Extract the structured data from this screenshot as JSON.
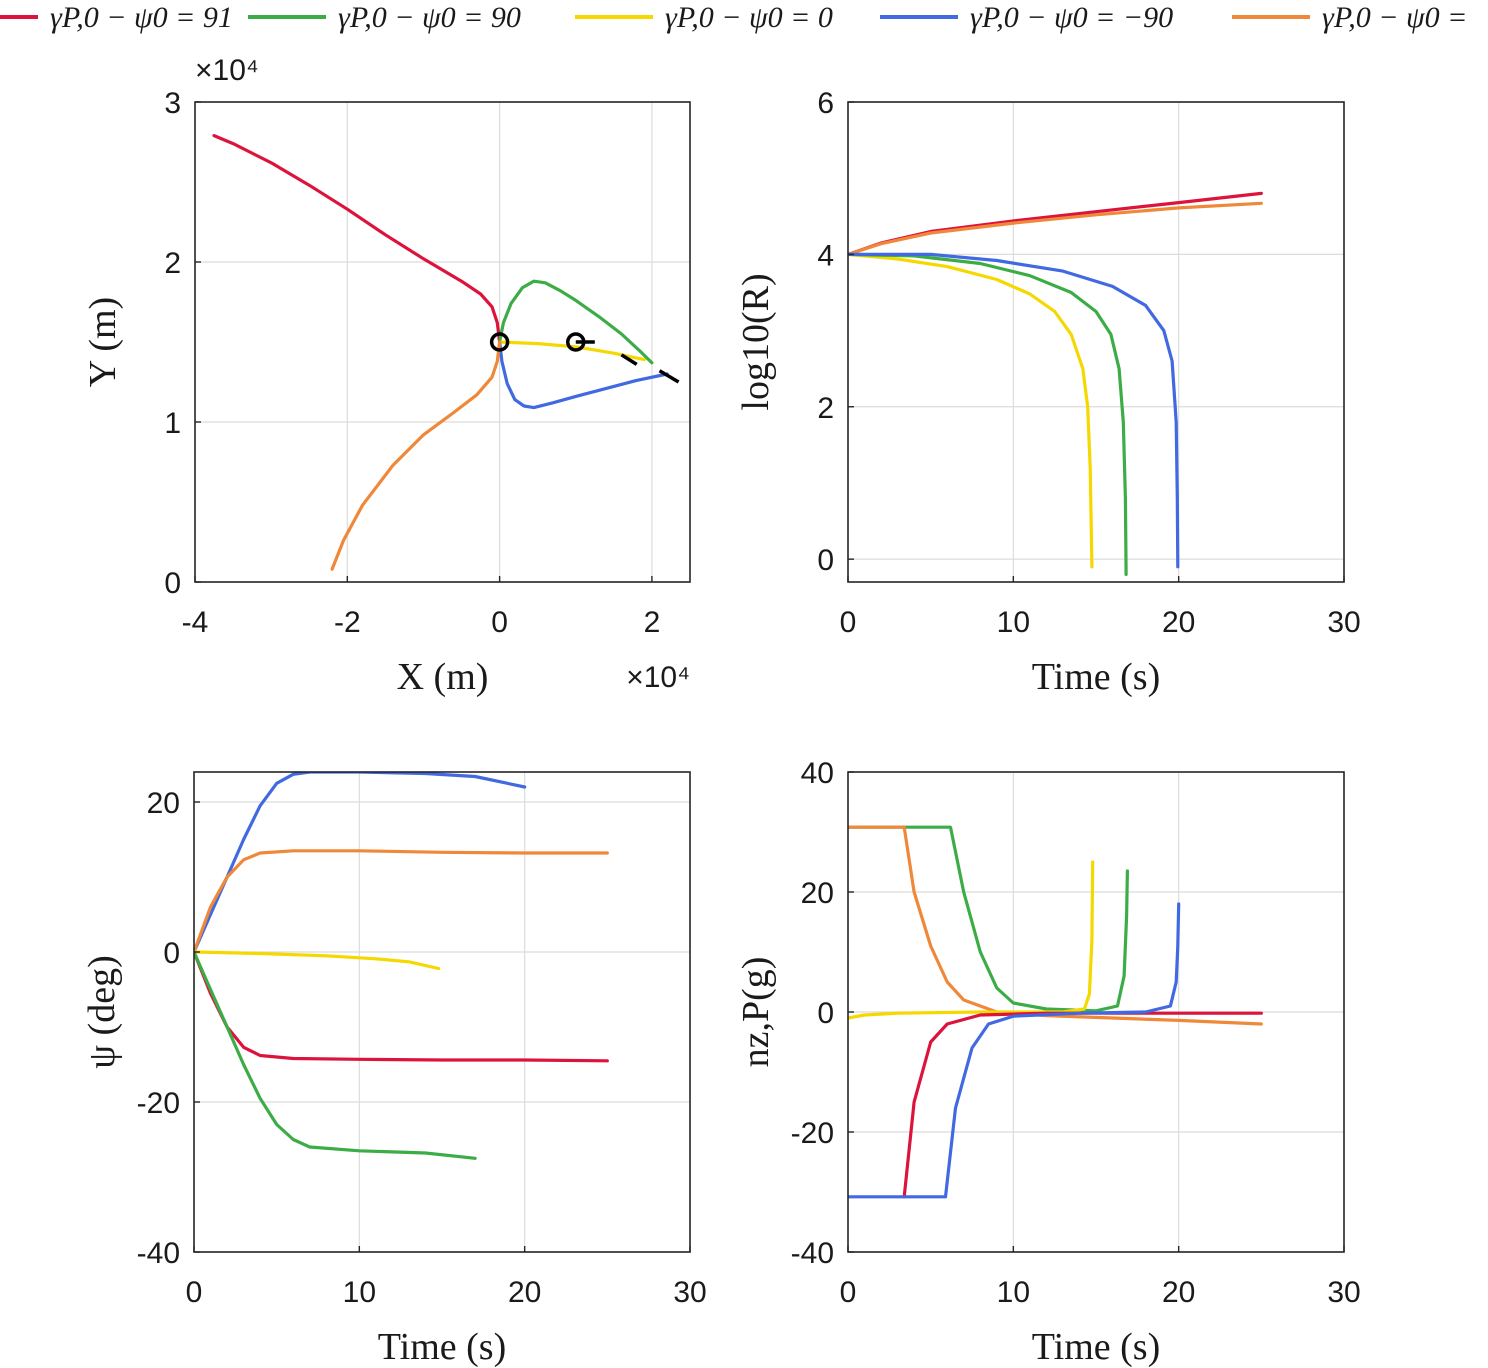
{
  "colors": {
    "red": "#dc143c",
    "green": "#3cac46",
    "yellow": "#f5d800",
    "blue": "#4169e1",
    "orange": "#f0883a",
    "marker": "#000000"
  },
  "legend": [
    {
      "label": "γP,0 − ψ0 = 91",
      "color": "red"
    },
    {
      "label": "γP,0 − ψ0 = 90",
      "color": "green"
    },
    {
      "label": "γP,0 − ψ0 = 0",
      "color": "yellow"
    },
    {
      "label": "γP,0 − ψ0 = −90",
      "color": "blue"
    },
    {
      "label": "γP,0 − ψ0 =",
      "color": "orange"
    }
  ],
  "chart_data": [
    {
      "id": "trajectory",
      "type": "line",
      "xlabel": "X (m)",
      "ylabel": "Y (m)",
      "xlim": [
        -4,
        2.5
      ],
      "ylim": [
        0,
        3
      ],
      "xticks": [
        -4,
        -2,
        0,
        2
      ],
      "yticks": [
        0,
        1,
        2,
        3
      ],
      "xtick_labels": [
        "-4",
        "-2",
        "0",
        "2"
      ],
      "ytick_labels": [
        "0",
        "1",
        "2",
        "3"
      ],
      "x_exponent": "×10⁴",
      "y_exponent": "×10⁴",
      "series": [
        {
          "name": "γP,0 − ψ0 = 91",
          "color": "red",
          "points": [
            [
              0,
              1.5
            ],
            [
              -0.03,
              1.62
            ],
            [
              -0.1,
              1.72
            ],
            [
              -0.25,
              1.8
            ],
            [
              -0.5,
              1.88
            ],
            [
              -1.0,
              2.02
            ],
            [
              -1.5,
              2.17
            ],
            [
              -2.0,
              2.33
            ],
            [
              -2.5,
              2.48
            ],
            [
              -3.0,
              2.62
            ],
            [
              -3.5,
              2.74
            ],
            [
              -3.75,
              2.79
            ]
          ]
        },
        {
          "name": "γP,0 − ψ0 = 90",
          "color": "green",
          "points": [
            [
              0,
              1.5
            ],
            [
              0.05,
              1.62
            ],
            [
              0.15,
              1.74
            ],
            [
              0.3,
              1.84
            ],
            [
              0.45,
              1.88
            ],
            [
              0.6,
              1.87
            ],
            [
              0.8,
              1.82
            ],
            [
              1.0,
              1.76
            ],
            [
              1.3,
              1.66
            ],
            [
              1.6,
              1.55
            ],
            [
              1.85,
              1.44
            ],
            [
              2.0,
              1.37
            ]
          ]
        },
        {
          "name": "γP,0 − ψ0 = 0",
          "color": "yellow",
          "points": [
            [
              0,
              1.5
            ],
            [
              0.5,
              1.49
            ],
            [
              1.0,
              1.47
            ],
            [
              1.5,
              1.43
            ],
            [
              1.9,
              1.39
            ]
          ]
        },
        {
          "name": "γP,0 − ψ0 = −90",
          "color": "blue",
          "points": [
            [
              0,
              1.5
            ],
            [
              0.03,
              1.38
            ],
            [
              0.1,
              1.24
            ],
            [
              0.2,
              1.14
            ],
            [
              0.32,
              1.1
            ],
            [
              0.45,
              1.09
            ],
            [
              0.7,
              1.12
            ],
            [
              1.0,
              1.16
            ],
            [
              1.4,
              1.21
            ],
            [
              1.8,
              1.26
            ],
            [
              2.2,
              1.3
            ]
          ]
        },
        {
          "name": "γP,0 − ψ0 =",
          "color": "orange",
          "points": [
            [
              0,
              1.5
            ],
            [
              -0.03,
              1.38
            ],
            [
              -0.1,
              1.28
            ],
            [
              -0.3,
              1.17
            ],
            [
              -0.6,
              1.06
            ],
            [
              -1.0,
              0.92
            ],
            [
              -1.4,
              0.73
            ],
            [
              -1.8,
              0.48
            ],
            [
              -2.05,
              0.26
            ],
            [
              -2.2,
              0.08
            ]
          ]
        }
      ],
      "markers": [
        [
          0,
          1.5
        ],
        [
          1.0,
          1.5
        ]
      ],
      "marker_ticks": [
        [
          [
            1.0,
            1.5
          ],
          [
            1.25,
            1.5
          ]
        ],
        [
          [
            1.6,
            1.42
          ],
          [
            1.8,
            1.36
          ]
        ],
        [
          [
            2.1,
            1.32
          ],
          [
            2.35,
            1.25
          ]
        ]
      ]
    },
    {
      "id": "range",
      "type": "line",
      "xlabel": "Time (s)",
      "ylabel": "log10(R)",
      "xlim": [
        0,
        30
      ],
      "ylim": [
        -0.3,
        6
      ],
      "xticks": [
        0,
        10,
        20,
        30
      ],
      "yticks": [
        0,
        2,
        4,
        6
      ],
      "xtick_labels": [
        "0",
        "10",
        "20",
        "30"
      ],
      "ytick_labels": [
        "0",
        "2",
        "4",
        "6"
      ],
      "series": [
        {
          "name": "γP,0 − ψ0 = 91",
          "color": "red",
          "points": [
            [
              0,
              4
            ],
            [
              2,
              4.15
            ],
            [
              5,
              4.3
            ],
            [
              10,
              4.44
            ],
            [
              15,
              4.56
            ],
            [
              20,
              4.68
            ],
            [
              25,
              4.8
            ]
          ]
        },
        {
          "name": "γP,0 − ψ0 =",
          "color": "orange",
          "points": [
            [
              0,
              4
            ],
            [
              2,
              4.14
            ],
            [
              5,
              4.28
            ],
            [
              10,
              4.41
            ],
            [
              15,
              4.52
            ],
            [
              20,
              4.61
            ],
            [
              25,
              4.67
            ]
          ]
        },
        {
          "name": "γP,0 − ψ0 = 0",
          "color": "yellow",
          "points": [
            [
              0,
              4
            ],
            [
              3,
              3.94
            ],
            [
              6,
              3.84
            ],
            [
              9,
              3.67
            ],
            [
              11,
              3.48
            ],
            [
              12.5,
              3.25
            ],
            [
              13.5,
              2.95
            ],
            [
              14.2,
              2.5
            ],
            [
              14.5,
              2.0
            ],
            [
              14.65,
              1.2
            ],
            [
              14.72,
              0.3
            ],
            [
              14.75,
              -0.1
            ]
          ]
        },
        {
          "name": "γP,0 − ψ0 = 90",
          "color": "green",
          "points": [
            [
              0,
              4
            ],
            [
              4,
              3.98
            ],
            [
              8,
              3.88
            ],
            [
              11,
              3.72
            ],
            [
              13.5,
              3.5
            ],
            [
              15,
              3.25
            ],
            [
              15.9,
              2.95
            ],
            [
              16.4,
              2.5
            ],
            [
              16.65,
              1.8
            ],
            [
              16.78,
              0.8
            ],
            [
              16.82,
              -0.2
            ]
          ]
        },
        {
          "name": "γP,0 − ψ0 = −90",
          "color": "blue",
          "points": [
            [
              0,
              4
            ],
            [
              5,
              4.0
            ],
            [
              9,
              3.92
            ],
            [
              13,
              3.78
            ],
            [
              16,
              3.58
            ],
            [
              18,
              3.33
            ],
            [
              19.1,
              3.0
            ],
            [
              19.6,
              2.6
            ],
            [
              19.85,
              1.8
            ],
            [
              19.92,
              0.8
            ],
            [
              19.95,
              -0.1
            ]
          ]
        }
      ]
    },
    {
      "id": "heading",
      "type": "line",
      "xlabel": "Time (s)",
      "ylabel": "ψ (deg)",
      "xlim": [
        0,
        30
      ],
      "ylim": [
        -40,
        24
      ],
      "xticks": [
        0,
        10,
        20,
        30
      ],
      "yticks": [
        -40,
        -20,
        0,
        20
      ],
      "xtick_labels": [
        "0",
        "10",
        "20",
        "30"
      ],
      "ytick_labels": [
        "-40",
        "-20",
        "0",
        "20"
      ],
      "series": [
        {
          "name": "γP,0 − ψ0 = −90",
          "color": "blue",
          "points": [
            [
              0,
              0
            ],
            [
              1,
              5
            ],
            [
              2,
              10
            ],
            [
              3,
              15
            ],
            [
              4,
              19.5
            ],
            [
              5,
              22.5
            ],
            [
              6,
              23.7
            ],
            [
              7,
              24
            ],
            [
              10,
              24
            ],
            [
              14,
              23.8
            ],
            [
              17,
              23.4
            ],
            [
              20,
              22
            ]
          ]
        },
        {
          "name": "γP,0 − ψ0 =",
          "color": "orange",
          "points": [
            [
              0,
              0
            ],
            [
              1,
              6
            ],
            [
              2,
              10
            ],
            [
              3,
              12.3
            ],
            [
              4,
              13.2
            ],
            [
              6,
              13.5
            ],
            [
              10,
              13.5
            ],
            [
              15,
              13.3
            ],
            [
              20,
              13.2
            ],
            [
              25,
              13.2
            ]
          ]
        },
        {
          "name": "γP,0 − ψ0 = 0",
          "color": "yellow",
          "points": [
            [
              0,
              0
            ],
            [
              4,
              -0.2
            ],
            [
              8,
              -0.5
            ],
            [
              11,
              -0.9
            ],
            [
              13,
              -1.3
            ],
            [
              14.8,
              -2.2
            ]
          ]
        },
        {
          "name": "γP,0 − ψ0 = 91",
          "color": "red",
          "points": [
            [
              0,
              0
            ],
            [
              1,
              -5.5
            ],
            [
              2,
              -10
            ],
            [
              3,
              -12.7
            ],
            [
              4,
              -13.8
            ],
            [
              6,
              -14.2
            ],
            [
              10,
              -14.3
            ],
            [
              15,
              -14.4
            ],
            [
              20,
              -14.4
            ],
            [
              25,
              -14.5
            ]
          ]
        },
        {
          "name": "γP,0 − ψ0 = 90",
          "color": "green",
          "points": [
            [
              0,
              0
            ],
            [
              1,
              -5
            ],
            [
              2,
              -10
            ],
            [
              3,
              -15
            ],
            [
              4,
              -19.5
            ],
            [
              5,
              -23
            ],
            [
              6,
              -25
            ],
            [
              7,
              -26
            ],
            [
              10,
              -26.5
            ],
            [
              14,
              -26.8
            ],
            [
              17,
              -27.5
            ]
          ]
        }
      ]
    },
    {
      "id": "load",
      "type": "line",
      "xlabel": "Time (s)",
      "ylabel": "nz,P(g)",
      "xlim": [
        0,
        30
      ],
      "ylim": [
        -40,
        40
      ],
      "xticks": [
        0,
        10,
        20,
        30
      ],
      "yticks": [
        -40,
        -20,
        0,
        20,
        40
      ],
      "xtick_labels": [
        "0",
        "10",
        "20",
        "30"
      ],
      "ytick_labels": [
        "-40",
        "-20",
        "0",
        "20",
        "40"
      ],
      "series": [
        {
          "name": "γP,0 − ψ0 = 90",
          "color": "green",
          "points": [
            [
              0,
              30.8
            ],
            [
              6.2,
              30.8
            ],
            [
              7,
              20
            ],
            [
              8,
              10
            ],
            [
              9,
              4
            ],
            [
              10,
              1.5
            ],
            [
              12,
              0.5
            ],
            [
              15,
              0.2
            ],
            [
              16.3,
              1
            ],
            [
              16.7,
              6
            ],
            [
              16.85,
              16
            ],
            [
              16.9,
              23.5
            ]
          ]
        },
        {
          "name": "γP,0 − ψ0 =",
          "color": "orange",
          "points": [
            [
              0,
              30.8
            ],
            [
              3.4,
              30.8
            ],
            [
              4,
              20
            ],
            [
              5,
              11
            ],
            [
              6,
              5
            ],
            [
              7,
              2
            ],
            [
              9,
              0
            ],
            [
              12,
              -0.6
            ],
            [
              16,
              -1
            ],
            [
              20,
              -1.4
            ],
            [
              25,
              -2
            ]
          ]
        },
        {
          "name": "γP,0 − ψ0 = 0",
          "color": "yellow",
          "points": [
            [
              0,
              -1
            ],
            [
              1,
              -0.5
            ],
            [
              3,
              -0.2
            ],
            [
              8,
              0
            ],
            [
              13,
              0
            ],
            [
              14.3,
              0.5
            ],
            [
              14.6,
              3
            ],
            [
              14.75,
              12
            ],
            [
              14.8,
              25
            ]
          ]
        },
        {
          "name": "γP,0 − ψ0 = 91",
          "color": "red",
          "points": [
            [
              3.4,
              -30.8
            ],
            [
              4,
              -15
            ],
            [
              5,
              -5
            ],
            [
              6,
              -2
            ],
            [
              8,
              -0.5
            ],
            [
              12,
              -0.2
            ],
            [
              20,
              -0.2
            ],
            [
              25,
              -0.2
            ]
          ]
        },
        {
          "name": "γP,0 − ψ0 = −90",
          "color": "blue",
          "points": [
            [
              0,
              -30.8
            ],
            [
              5.9,
              -30.8
            ],
            [
              6.5,
              -16
            ],
            [
              7.5,
              -6
            ],
            [
              8.5,
              -2
            ],
            [
              10,
              -0.7
            ],
            [
              14,
              -0.2
            ],
            [
              18,
              0
            ],
            [
              19.5,
              1
            ],
            [
              19.85,
              5
            ],
            [
              19.95,
              11
            ],
            [
              20,
              18
            ]
          ]
        }
      ]
    }
  ]
}
